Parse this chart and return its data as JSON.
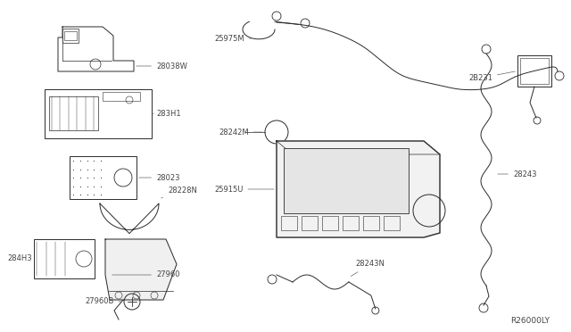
{
  "bg_color": "#ffffff",
  "lc": "#2a2a2a",
  "tc": "#444444",
  "figsize": [
    6.4,
    3.72
  ],
  "dpi": 100,
  "xlim": [
    0,
    640
  ],
  "ylim": [
    0,
    372
  ]
}
